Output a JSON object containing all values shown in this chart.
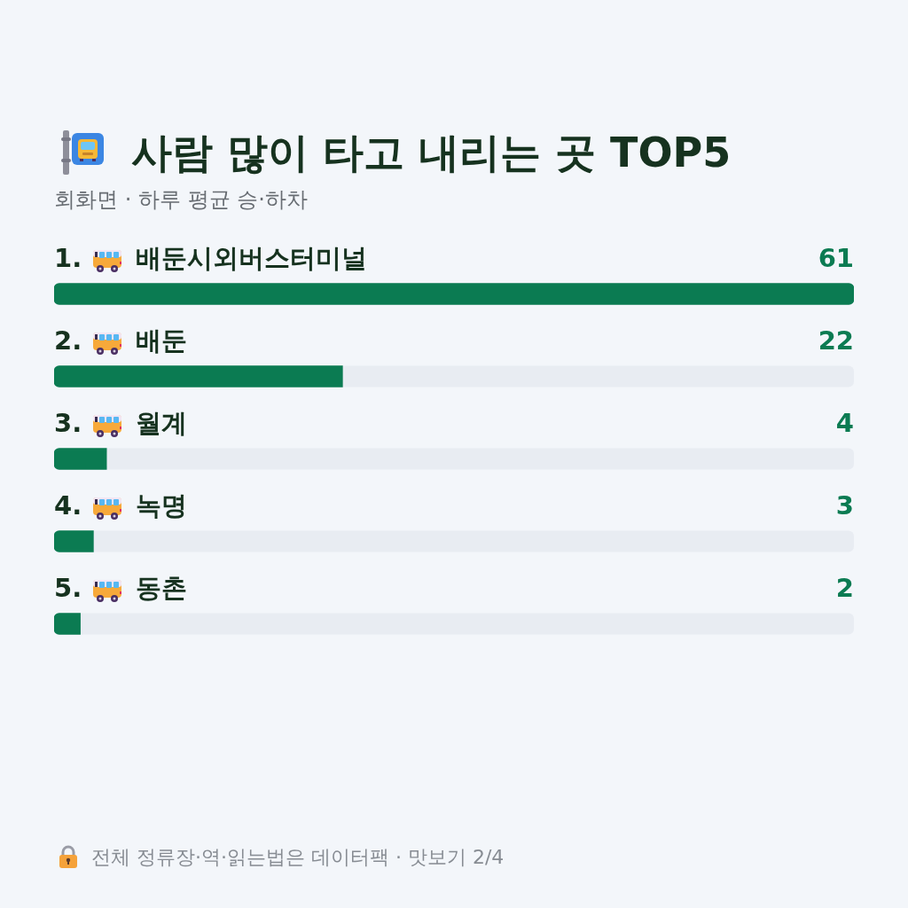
{
  "chart_data": {
    "type": "bar",
    "orientation": "horizontal",
    "title": "사람 많이 타고 내리는 곳 TOP5",
    "subtitle": "회화면 · 하루 평균 승·하차",
    "categories": [
      "1. 배둔시외버스터미널",
      "2. 배둔",
      "3. 월계",
      "4. 녹명",
      "5. 동촌"
    ],
    "values": [
      61,
      22,
      4,
      3,
      2
    ],
    "color": "#0b7b52",
    "data_labels": true,
    "annotations": [
      "전체 정류장·역·읽는법은 데이터팩 · 맛보기 2/4"
    ]
  }
}
